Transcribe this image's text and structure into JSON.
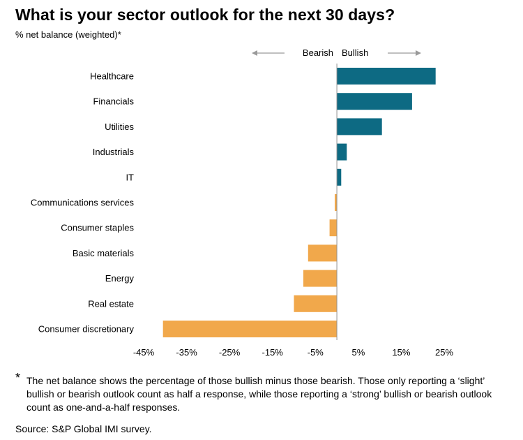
{
  "title": "What is your sector outlook for the next 30 days?",
  "subtitle": "% net balance (weighted)*",
  "direction": {
    "bearish_label": "Bearish",
    "bullish_label": "Bullish"
  },
  "footnote": {
    "marker": "*",
    "text": "The net balance shows the percentage of those bullish minus those bearish. Those only reporting a ‘slight’ bullish or bearish outlook count as half a response, while those reporting a ‘strong’ bullish or bearish outlook count as one-and-a-half responses."
  },
  "source": "Source: S&P Global IMI survey.",
  "colors": {
    "positive": "#0d6a83",
    "negative": "#f1a84b",
    "axis": "#8c8c8c"
  },
  "chart_data": {
    "type": "bar",
    "orientation": "horizontal",
    "xlim": [
      -45,
      25
    ],
    "xticks": [
      -45,
      -35,
      -25,
      -15,
      -5,
      5,
      15,
      25
    ],
    "xtick_labels": [
      "-45%",
      "-35%",
      "-25%",
      "-15%",
      "-5%",
      "5%",
      "15%",
      "25%"
    ],
    "categories": [
      "Healthcare",
      "Financials",
      "Utilities",
      "Industrials",
      "IT",
      "Communications services",
      "Consumer staples",
      "Basic materials",
      "Energy",
      "Real estate",
      "Consumer discretionary"
    ],
    "values": [
      23,
      17.5,
      10.5,
      2.3,
      1,
      -0.5,
      -1.7,
      -6.7,
      -7.8,
      -10,
      -40.5
    ]
  }
}
